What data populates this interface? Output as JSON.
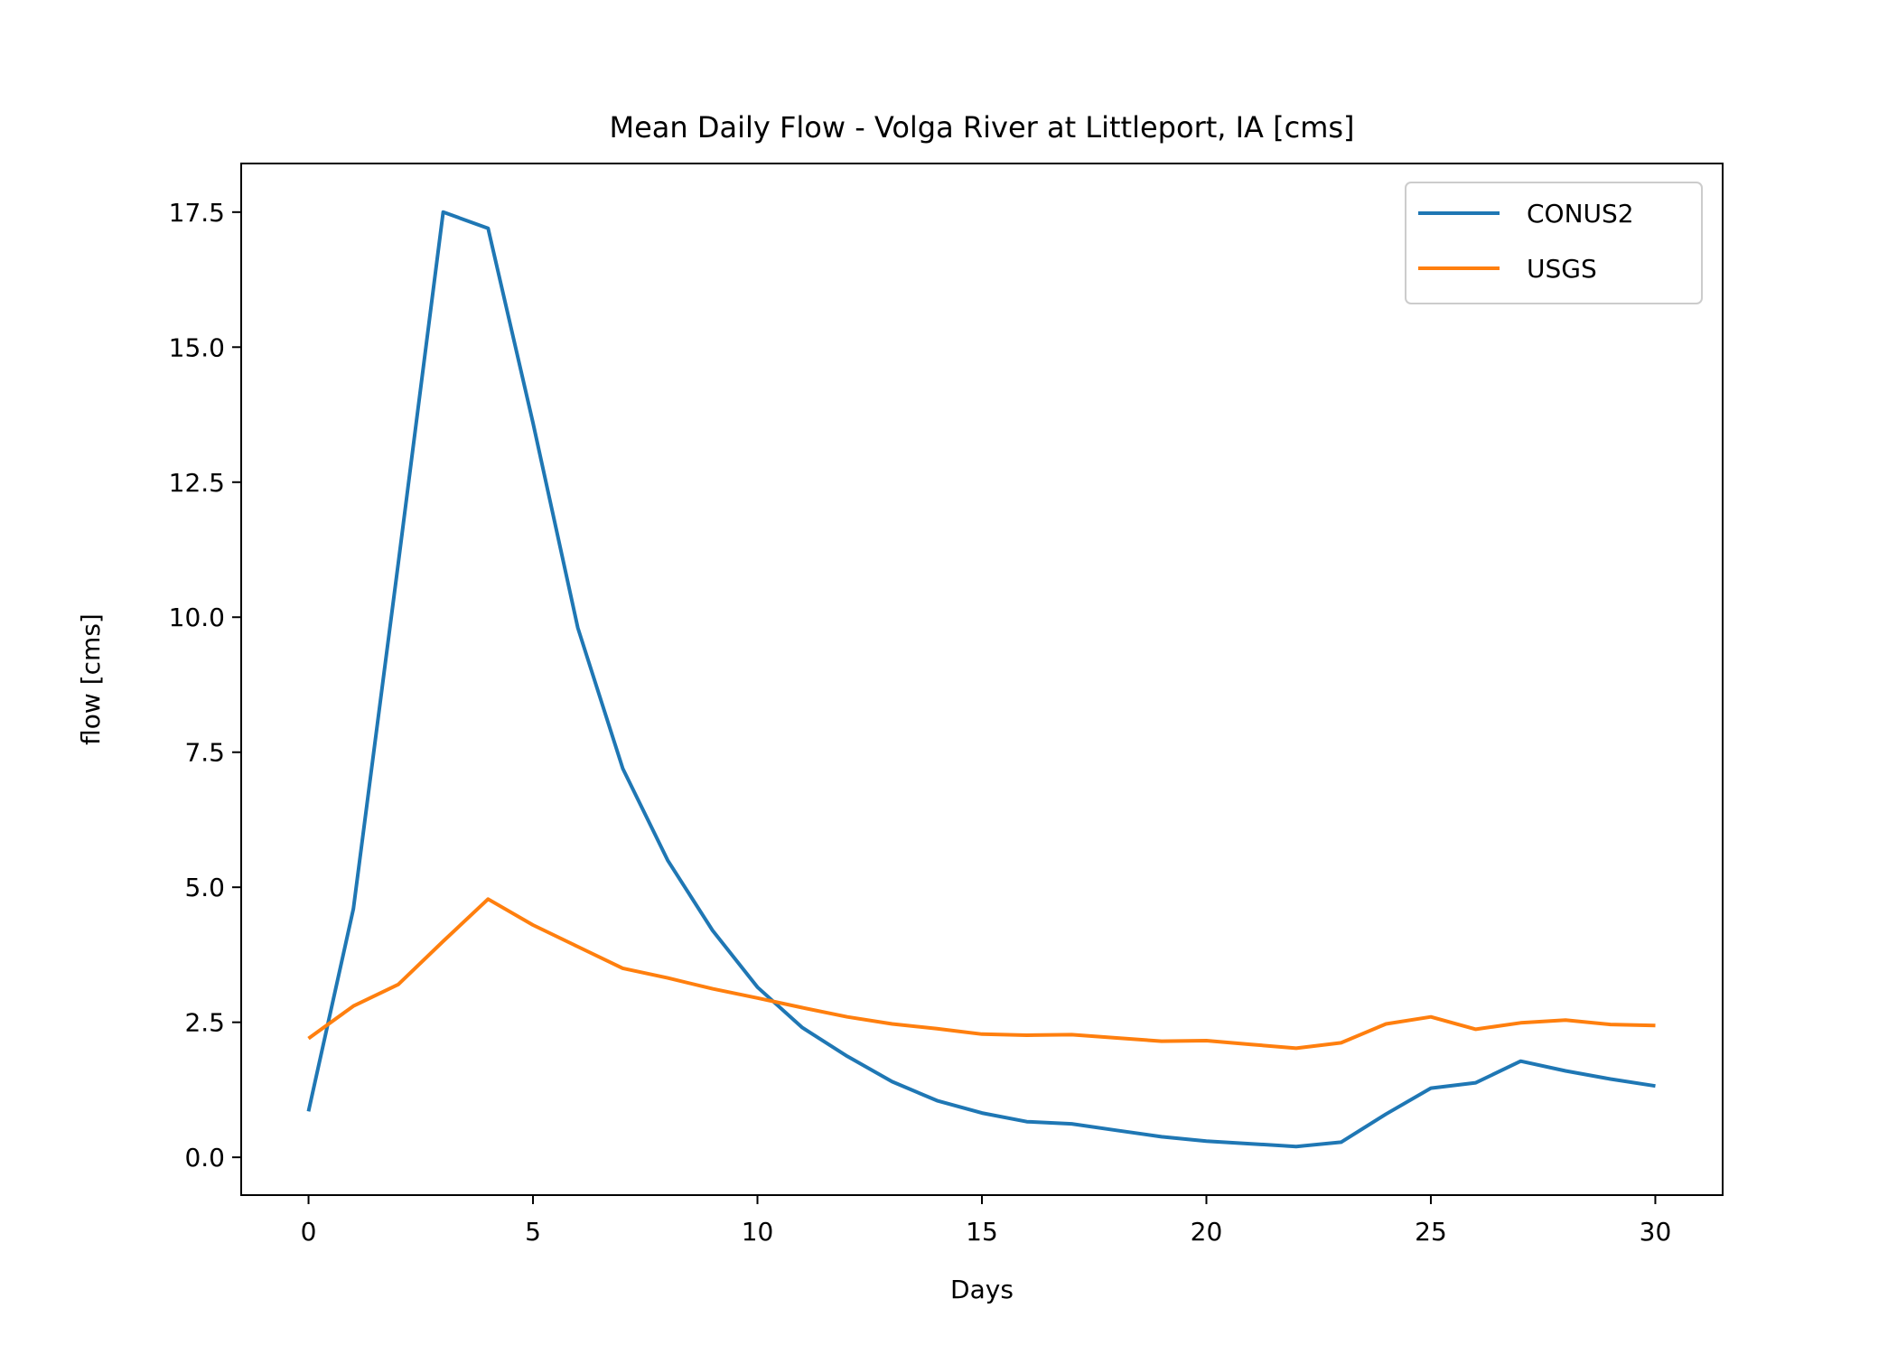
{
  "chart_data": {
    "type": "line",
    "title": "Mean Daily Flow - Volga River at Littleport, IA [cms]",
    "xlabel": "Days",
    "ylabel": "flow [cms]",
    "xlim": [
      -1.5,
      31.5
    ],
    "ylim": [
      -0.7,
      18.4
    ],
    "xticks": [
      0,
      5,
      10,
      15,
      20,
      25,
      30
    ],
    "xtick_labels": [
      "0",
      "5",
      "10",
      "15",
      "20",
      "25",
      "30"
    ],
    "yticks": [
      0.0,
      2.5,
      5.0,
      7.5,
      10.0,
      12.5,
      15.0,
      17.5
    ],
    "ytick_labels": [
      "0.0",
      "2.5",
      "5.0",
      "7.5",
      "10.0",
      "12.5",
      "15.0",
      "17.5"
    ],
    "grid": false,
    "legend_position": "top-right",
    "x": [
      0,
      1,
      2,
      3,
      4,
      5,
      6,
      7,
      8,
      9,
      10,
      11,
      12,
      13,
      14,
      15,
      16,
      17,
      18,
      19,
      20,
      21,
      22,
      23,
      24,
      25,
      26,
      27,
      28,
      29,
      30
    ],
    "series": [
      {
        "name": "CONUS2",
        "color": "#1f77b4",
        "values": [
          0.85,
          4.6,
          11.0,
          17.5,
          17.2,
          13.6,
          9.8,
          7.2,
          5.5,
          4.2,
          3.15,
          2.4,
          1.87,
          1.4,
          1.05,
          0.82,
          0.66,
          0.62,
          0.5,
          0.38,
          0.3,
          0.25,
          0.2,
          0.28,
          0.8,
          1.28,
          1.38,
          1.78,
          1.6,
          1.45,
          1.32
        ]
      },
      {
        "name": "USGS",
        "color": "#ff7f0e",
        "values": [
          2.2,
          2.8,
          3.2,
          4.0,
          4.78,
          4.3,
          3.9,
          3.5,
          3.32,
          3.12,
          2.95,
          2.77,
          2.6,
          2.47,
          2.38,
          2.28,
          2.26,
          2.27,
          2.21,
          2.15,
          2.16,
          2.09,
          2.02,
          2.12,
          2.47,
          2.6,
          2.37,
          2.49,
          2.54,
          2.46,
          2.44
        ]
      }
    ]
  }
}
